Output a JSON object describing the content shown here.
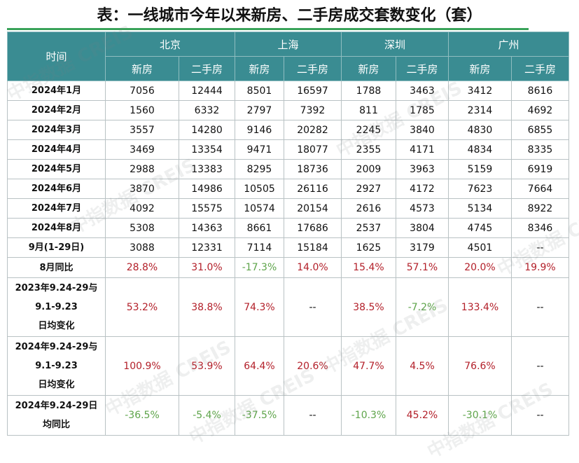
{
  "header": {
    "title": "表：一线城市今年以来新房、二手房成交套数变化（套）"
  },
  "watermark": "中指数据 CREIS",
  "table": {
    "corner": "时间",
    "cities": [
      "北京",
      "上海",
      "深圳",
      "广州"
    ],
    "subheaders": [
      "新房",
      "二手房",
      "新房",
      "二手房",
      "新房",
      "二手房",
      "新房",
      "二手房"
    ],
    "rows": [
      {
        "label": [
          "2024年1月"
        ],
        "cells": [
          "7056",
          "12444",
          "8501",
          "16597",
          "1788",
          "3463",
          "3412",
          "8616"
        ]
      },
      {
        "label": [
          "2024年2月"
        ],
        "cells": [
          "1560",
          "6332",
          "2797",
          "7392",
          "811",
          "1785",
          "2314",
          "4692"
        ]
      },
      {
        "label": [
          "2024年3月"
        ],
        "cells": [
          "3557",
          "14280",
          "9146",
          "20282",
          "2245",
          "3840",
          "4830",
          "6855"
        ]
      },
      {
        "label": [
          "2024年4月"
        ],
        "cells": [
          "3469",
          "13354",
          "9471",
          "18077",
          "2355",
          "4171",
          "4834",
          "8335"
        ]
      },
      {
        "label": [
          "2024年5月"
        ],
        "cells": [
          "2988",
          "13383",
          "8295",
          "18736",
          "2009",
          "3963",
          "5159",
          "6919"
        ]
      },
      {
        "label": [
          "2024年6月"
        ],
        "cells": [
          "3870",
          "14986",
          "10505",
          "26116",
          "2927",
          "4172",
          "7623",
          "7664"
        ]
      },
      {
        "label": [
          "2024年7月"
        ],
        "cells": [
          "4092",
          "15575",
          "10574",
          "20154",
          "2616",
          "4573",
          "5134",
          "8922"
        ]
      },
      {
        "label": [
          "2024年8月"
        ],
        "cells": [
          "5308",
          "14363",
          "8661",
          "17686",
          "2537",
          "3804",
          "4745",
          "8346"
        ]
      },
      {
        "label": [
          "9月(1-29日)"
        ],
        "cells": [
          "3088",
          "12331",
          "7114",
          "15184",
          "1625",
          "3179",
          "4501",
          "--"
        ]
      },
      {
        "label": [
          "8月同比"
        ],
        "cells": [
          "28.8%",
          "31.0%",
          "-17.3%",
          "14.0%",
          "15.4%",
          "57.1%",
          "20.0%",
          "19.9%"
        ]
      },
      {
        "label": [
          "2023年9.24-29与",
          "9.1-9.23",
          "日均变化"
        ],
        "cells": [
          "53.2%",
          "38.8%",
          "74.3%",
          "--",
          "38.5%",
          "-7.2%",
          "133.4%",
          "--"
        ]
      },
      {
        "label": [
          "2024年9.24-29与",
          "9.1-9.23",
          "日均变化"
        ],
        "cells": [
          "100.9%",
          "53.9%",
          "64.4%",
          "20.6%",
          "47.7%",
          "4.5%",
          "76.6%",
          "--"
        ]
      },
      {
        "label": [
          "2024年9.24-29日",
          "均同比"
        ],
        "cells": [
          "-36.5%",
          "-5.4%",
          "-37.5%",
          "--",
          "-10.3%",
          "45.2%",
          "-30.1%",
          "--"
        ]
      }
    ]
  }
}
